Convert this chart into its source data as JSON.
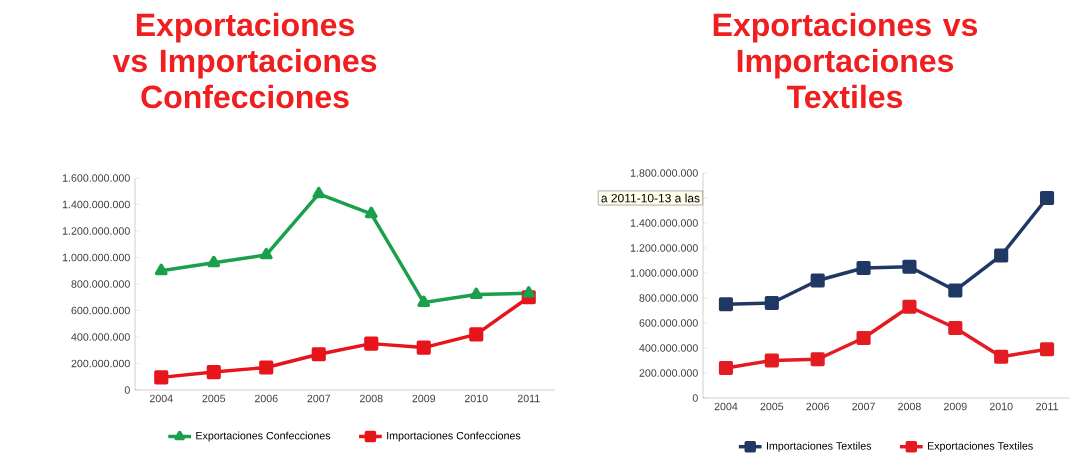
{
  "chart_data": [
    {
      "type": "line",
      "title": "Exportaciones vs Importaciones Confecciones",
      "categories": [
        "2004",
        "2005",
        "2006",
        "2007",
        "2008",
        "2009",
        "2010",
        "2011"
      ],
      "series": [
        {
          "name": "Exportaciones Confecciones",
          "color": "#1aa04a",
          "marker": "triangle",
          "values": [
            900000000,
            960000000,
            1020000000,
            1480000000,
            1330000000,
            660000000,
            720000000,
            730000000
          ]
        },
        {
          "name": "Importaciones Confecciones",
          "color": "#e8141c",
          "marker": "square",
          "values": [
            95000000,
            135000000,
            170000000,
            270000000,
            350000000,
            320000000,
            420000000,
            700000000
          ]
        }
      ],
      "ylim": [
        0,
        1600000000
      ],
      "yticks": [
        0,
        {
          "value": 200000000,
          "label": "200.000.000"
        },
        {
          "value": 400000000,
          "label": "400.000.000"
        },
        {
          "value": 600000000,
          "label": "600.000.000"
        },
        {
          "value": 800000000,
          "label": "800.000.000"
        },
        {
          "value": 1000000000,
          "label": "1.000.000.000"
        },
        {
          "value": 1200000000,
          "label": "1.200.000.000"
        },
        {
          "value": 1400000000,
          "label": "1.400.000.000"
        },
        {
          "value": 1600000000,
          "label": "1.600.000.000"
        }
      ],
      "legend": "bottom",
      "grid": false
    },
    {
      "type": "line",
      "title": "Exportaciones vs Importaciones Textiles",
      "categories": [
        "2004",
        "2005",
        "2006",
        "2007",
        "2008",
        "2009",
        "2010",
        "2011"
      ],
      "series": [
        {
          "name": "Importaciones Textiles",
          "color": "#1f3864",
          "marker": "square",
          "values": [
            750000000,
            760000000,
            940000000,
            1040000000,
            1050000000,
            860000000,
            1140000000,
            1600000000
          ]
        },
        {
          "name": "Exportaciones Textiles",
          "color": "#e31b23",
          "marker": "square",
          "values": [
            240000000,
            300000000,
            310000000,
            480000000,
            730000000,
            560000000,
            330000000,
            390000000
          ]
        }
      ],
      "ylim": [
        0,
        1800000000
      ],
      "yticks": [
        0,
        {
          "value": 200000000,
          "label": "200.000.000"
        },
        {
          "value": 400000000,
          "label": "400.000.000"
        },
        {
          "value": 600000000,
          "label": "600.000.000"
        },
        {
          "value": 800000000,
          "label": "800.000.000"
        },
        {
          "value": 1000000000,
          "label": "1.000.000.000"
        },
        {
          "value": 1200000000,
          "label": "1.200.000.000"
        },
        {
          "value": 1400000000,
          "label": "1.400.000.000"
        },
        {
          "value": 1600000000,
          "label": null
        },
        {
          "value": 1800000000,
          "label": "1.800.000.000"
        }
      ],
      "annotations": [
        "a 2011-10-13 a las"
      ],
      "legend": "bottom",
      "grid": false
    }
  ]
}
